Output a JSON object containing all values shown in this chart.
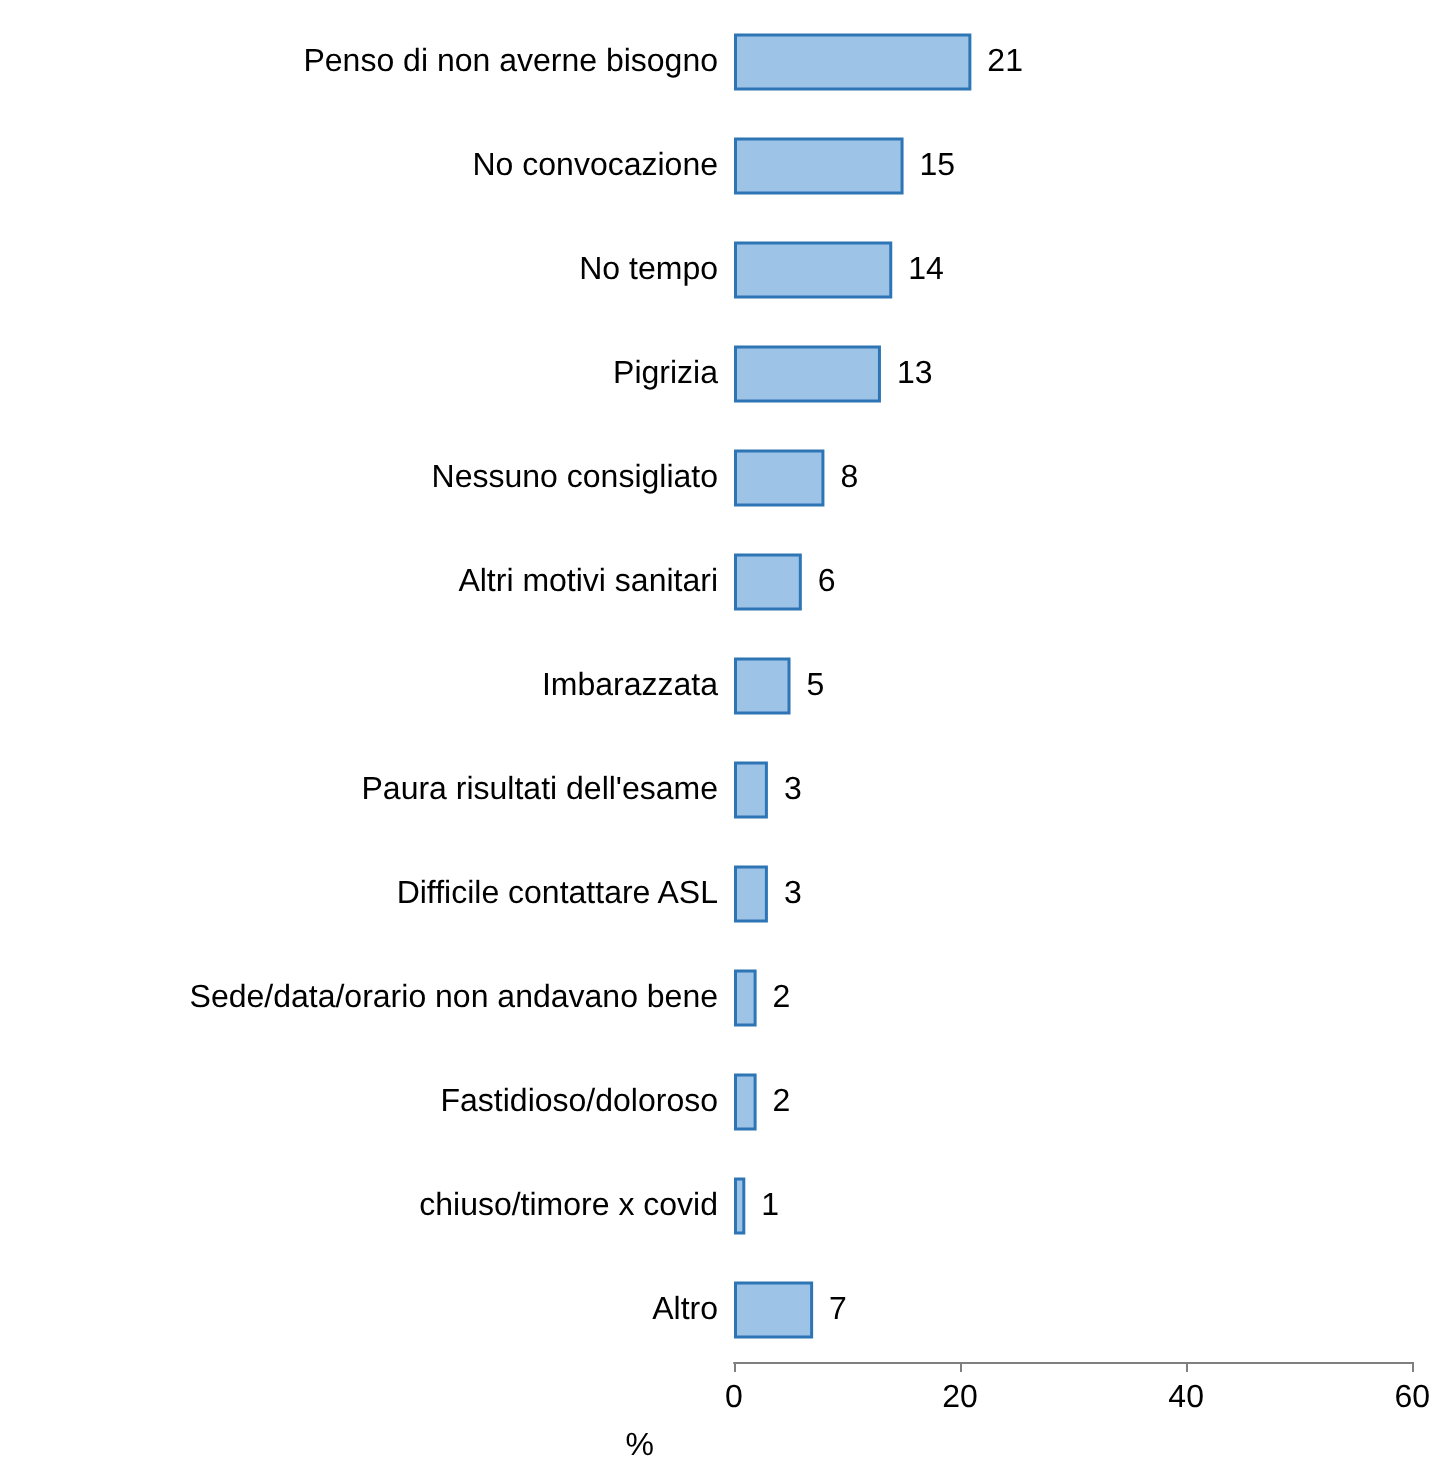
{
  "chart_data": {
    "type": "bar",
    "orientation": "horizontal",
    "xlabel": "%",
    "categories": [
      "Penso di non averne bisogno",
      "No convocazione",
      "No tempo",
      "Pigrizia",
      "Nessuno consigliato",
      "Altri motivi sanitari",
      "Imbarazzata",
      "Paura risultati dell'esame",
      "Difficile contattare ASL",
      "Sede/data/orario non andavano bene",
      "Fastidioso/doloroso",
      "chiuso/timore x covid",
      "Altro"
    ],
    "values": [
      21,
      15,
      14,
      13,
      8,
      6,
      5,
      3,
      3,
      2,
      2,
      1,
      7
    ],
    "color": "#9dc3e6",
    "xlim": [
      0,
      60
    ],
    "xticks": [
      0,
      20,
      40,
      60
    ],
    "grid": false,
    "data_labels": true
  }
}
